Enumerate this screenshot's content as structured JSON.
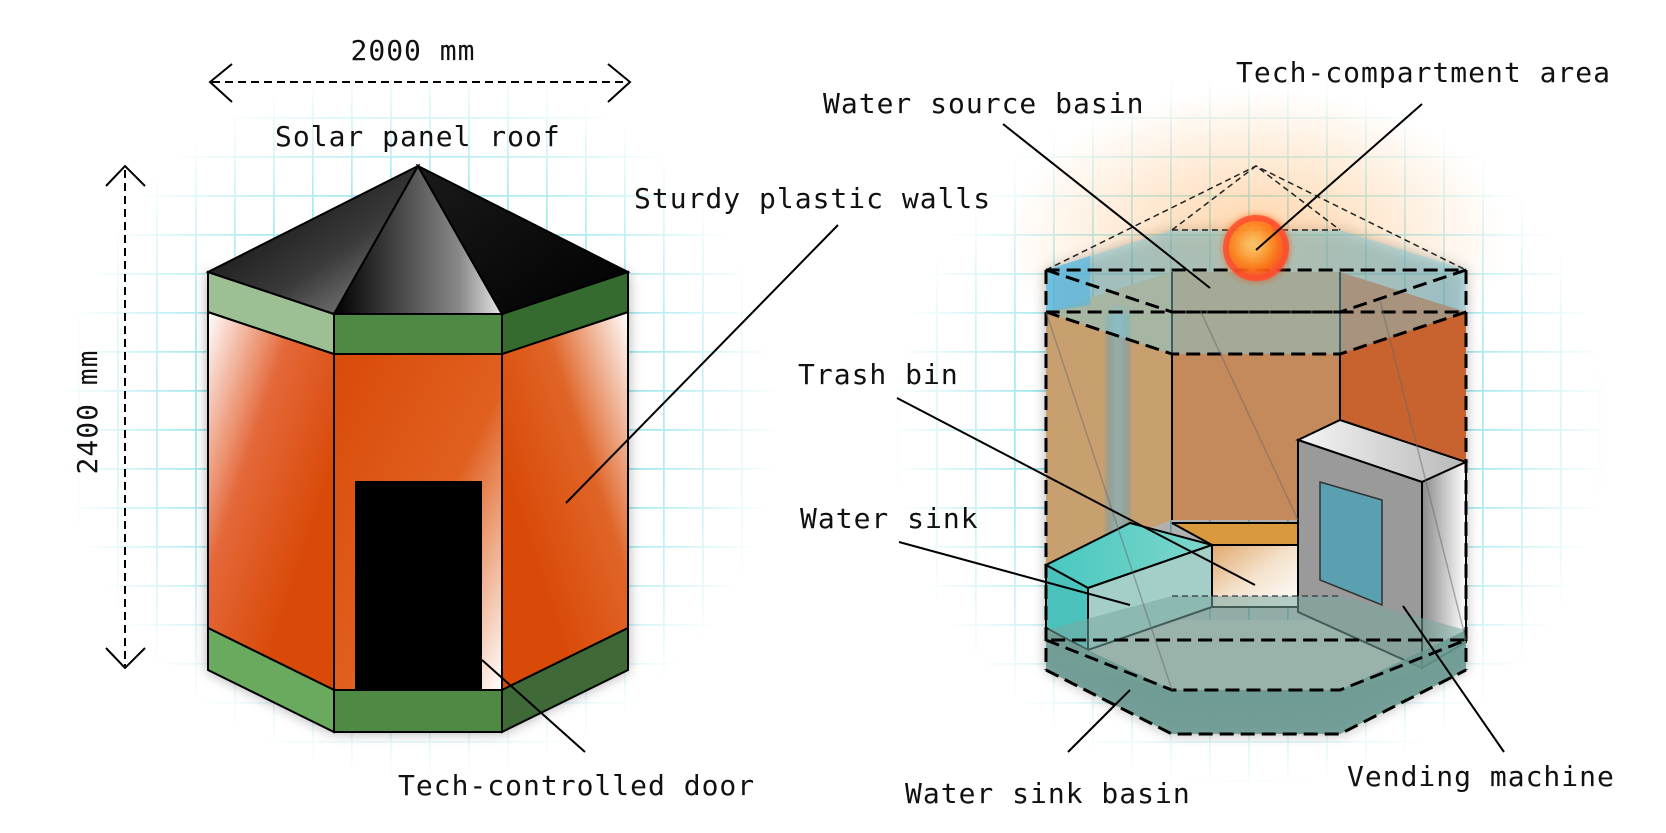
{
  "dimensions": {
    "width": "2000 mm",
    "height": "2400 mm"
  },
  "exterior_view": {
    "labels": {
      "roof": "Solar panel roof",
      "walls": "Sturdy plastic walls",
      "door": "Tech-controlled door"
    }
  },
  "interior_view": {
    "labels": {
      "water_source_basin": "Water source basin",
      "tech_compartment": "Tech-compartment area",
      "trash_bin": "Trash bin",
      "water_sink": "Water sink",
      "water_sink_basin": "Water sink basin",
      "vending_machine": "Vending machine"
    }
  },
  "colors": {
    "wall_orange": "#d94a08",
    "band_green": "#4f8a45",
    "roof_black": "#111111",
    "door_black": "#000000",
    "water_teal": "#5cc8c0",
    "blueprint_grid": "#8fe3ea",
    "interior_wall": "#c48a5c",
    "vending_grey": "#9a9a9a",
    "vending_screen": "#5aa0b0",
    "tech_glow": "#ff7a1a"
  }
}
